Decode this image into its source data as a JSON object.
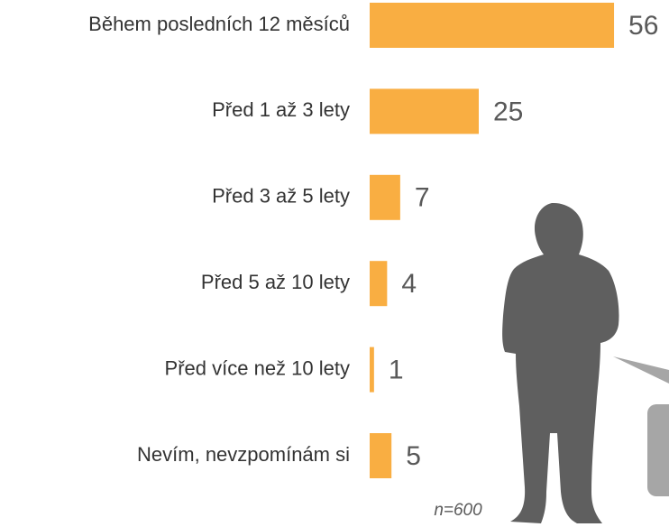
{
  "chart_data": {
    "type": "bar",
    "orientation": "horizontal",
    "categories": [
      "Během posledních 12 měsíců",
      "Před 1 až 3 lety",
      "Před 3 až 5 lety",
      "Před 5 až 10 lety",
      "Před více než 10 lety",
      "Nevím, nevzpomínám si"
    ],
    "values": [
      56,
      25,
      7,
      4,
      1,
      5
    ],
    "color": "#f9ae42",
    "note": "n=600"
  }
}
